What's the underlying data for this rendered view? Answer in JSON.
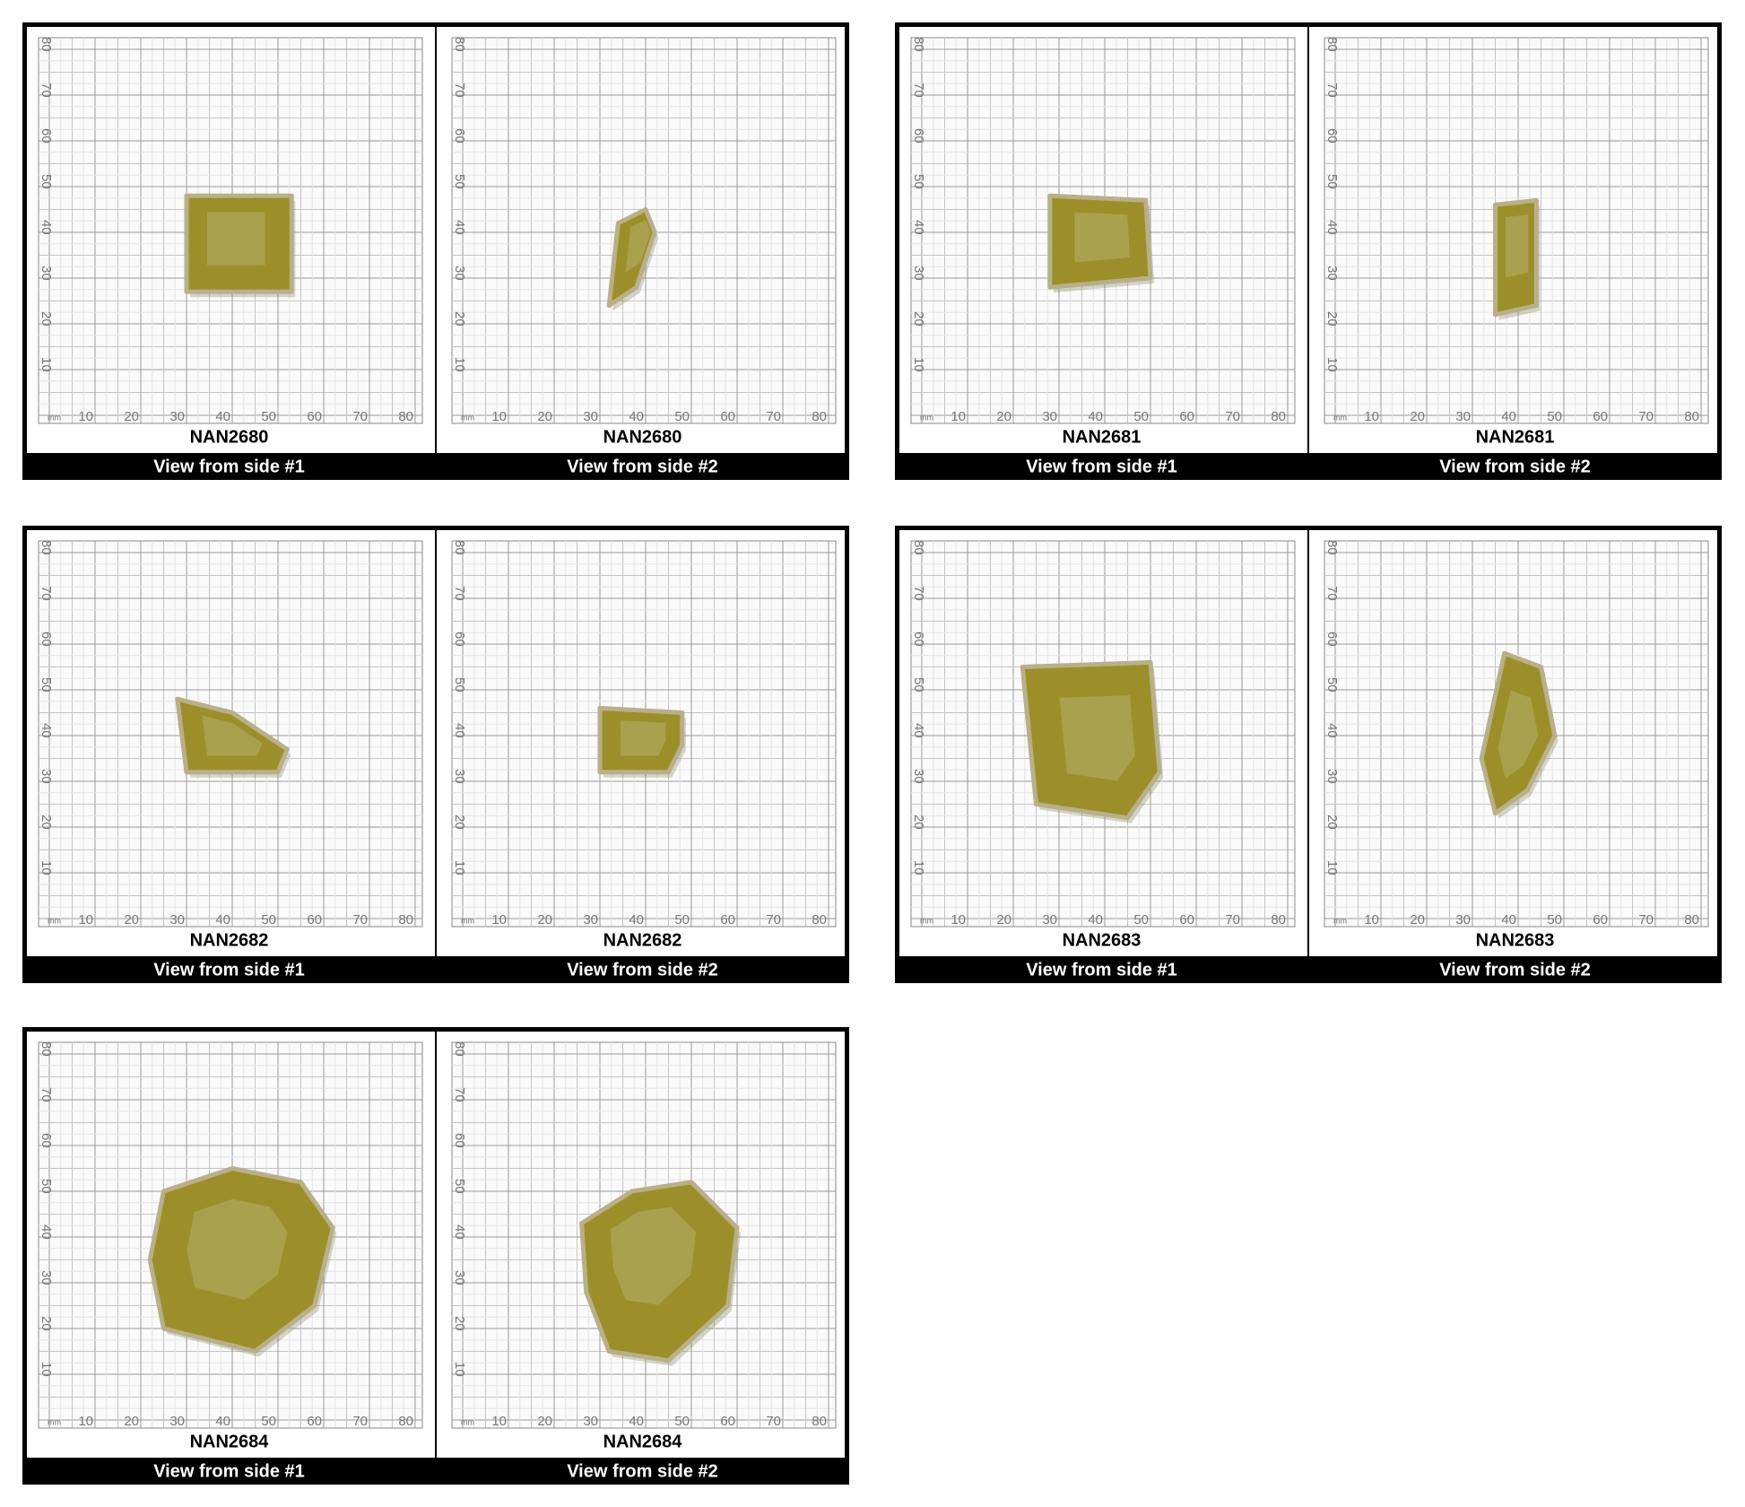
{
  "panels": [
    {
      "views": [
        {
          "sample": "NAN2680",
          "caption": "View from side #1"
        },
        {
          "sample": "NAN2680",
          "caption": "View from side #2"
        }
      ]
    },
    {
      "views": [
        {
          "sample": "NAN2681",
          "caption": "View from side #1"
        },
        {
          "sample": "NAN2681",
          "caption": "View from side #2"
        }
      ]
    },
    {
      "views": [
        {
          "sample": "NAN2682",
          "caption": "View from side #1"
        },
        {
          "sample": "NAN2682",
          "caption": "View from side #2"
        }
      ]
    },
    {
      "views": [
        {
          "sample": "NAN2683",
          "caption": "View from side #1"
        },
        {
          "sample": "NAN2683",
          "caption": "View from side #2"
        }
      ]
    },
    {
      "views": [
        {
          "sample": "NAN2684",
          "caption": "View from side #1"
        },
        {
          "sample": "NAN2684",
          "caption": "View from side #2"
        }
      ]
    }
  ],
  "scale": {
    "unit": "mm",
    "labels": [
      10,
      20,
      30,
      40,
      50,
      60,
      70,
      80
    ]
  }
}
